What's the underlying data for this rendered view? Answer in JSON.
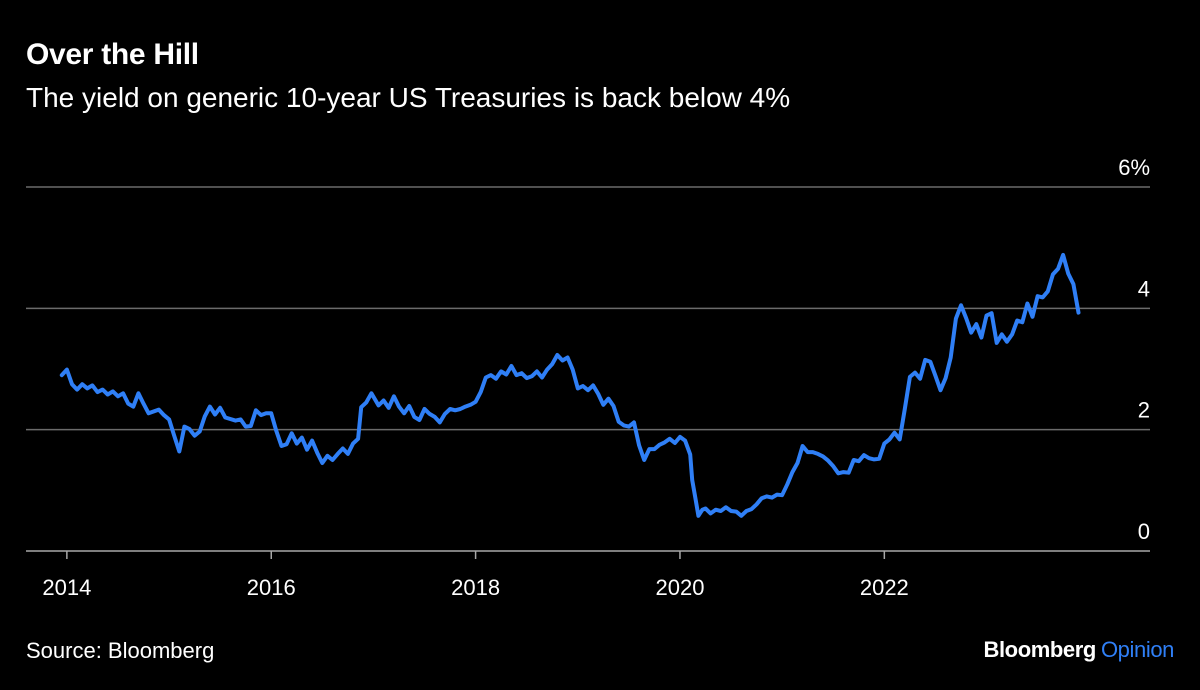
{
  "header": {
    "title": "Over the Hill",
    "subtitle": "The yield on generic 10-year US Treasuries is back below 4%"
  },
  "footer": {
    "source": "Source: Bloomberg",
    "brand_main": "Bloomberg",
    "brand_sub": "Opinion"
  },
  "colors": {
    "background": "#000000",
    "line": "#2f7ff6",
    "grid": "#6b6b6b",
    "text": "#ffffff"
  },
  "chart_data": {
    "type": "line",
    "title": "Over the Hill",
    "subtitle": "The yield on generic 10-year US Treasuries is back below 4%",
    "xlabel": "",
    "ylabel": "",
    "x_ticks": [
      "2014",
      "2016",
      "2018",
      "2020",
      "2022"
    ],
    "y_ticks": [
      "0",
      "2",
      "4",
      "6%"
    ],
    "ylim": [
      0,
      6
    ],
    "xlim": [
      2013.6,
      2024.6
    ],
    "grid": "horizontal",
    "y_axis_side": "right",
    "legend": "none",
    "series": [
      {
        "values": [
          [
            2013.95,
            2.9
          ],
          [
            2014.0,
            2.99
          ],
          [
            2014.05,
            2.75
          ],
          [
            2014.1,
            2.66
          ],
          [
            2014.15,
            2.75
          ],
          [
            2014.2,
            2.68
          ],
          [
            2014.25,
            2.73
          ],
          [
            2014.3,
            2.62
          ],
          [
            2014.35,
            2.66
          ],
          [
            2014.4,
            2.58
          ],
          [
            2014.45,
            2.63
          ],
          [
            2014.5,
            2.55
          ],
          [
            2014.55,
            2.6
          ],
          [
            2014.6,
            2.43
          ],
          [
            2014.65,
            2.38
          ],
          [
            2014.7,
            2.6
          ],
          [
            2014.75,
            2.43
          ],
          [
            2014.8,
            2.27
          ],
          [
            2014.9,
            2.33
          ],
          [
            2014.95,
            2.24
          ],
          [
            2015.0,
            2.17
          ],
          [
            2015.05,
            1.9
          ],
          [
            2015.1,
            1.64
          ],
          [
            2015.15,
            2.05
          ],
          [
            2015.2,
            2.01
          ],
          [
            2015.25,
            1.9
          ],
          [
            2015.3,
            1.97
          ],
          [
            2015.35,
            2.22
          ],
          [
            2015.4,
            2.38
          ],
          [
            2015.45,
            2.25
          ],
          [
            2015.5,
            2.36
          ],
          [
            2015.55,
            2.2
          ],
          [
            2015.65,
            2.15
          ],
          [
            2015.7,
            2.17
          ],
          [
            2015.75,
            2.05
          ],
          [
            2015.8,
            2.06
          ],
          [
            2015.85,
            2.32
          ],
          [
            2015.9,
            2.24
          ],
          [
            2015.95,
            2.27
          ],
          [
            2016.0,
            2.27
          ],
          [
            2016.05,
            1.98
          ],
          [
            2016.1,
            1.73
          ],
          [
            2016.15,
            1.76
          ],
          [
            2016.2,
            1.94
          ],
          [
            2016.25,
            1.77
          ],
          [
            2016.3,
            1.87
          ],
          [
            2016.35,
            1.67
          ],
          [
            2016.4,
            1.82
          ],
          [
            2016.45,
            1.62
          ],
          [
            2016.5,
            1.45
          ],
          [
            2016.55,
            1.57
          ],
          [
            2016.6,
            1.5
          ],
          [
            2016.65,
            1.6
          ],
          [
            2016.7,
            1.69
          ],
          [
            2016.75,
            1.6
          ],
          [
            2016.8,
            1.77
          ],
          [
            2016.85,
            1.85
          ],
          [
            2016.88,
            2.37
          ],
          [
            2016.93,
            2.45
          ],
          [
            2016.98,
            2.6
          ],
          [
            2017.05,
            2.4
          ],
          [
            2017.1,
            2.48
          ],
          [
            2017.15,
            2.36
          ],
          [
            2017.2,
            2.55
          ],
          [
            2017.25,
            2.38
          ],
          [
            2017.3,
            2.27
          ],
          [
            2017.35,
            2.39
          ],
          [
            2017.4,
            2.21
          ],
          [
            2017.45,
            2.16
          ],
          [
            2017.5,
            2.34
          ],
          [
            2017.55,
            2.26
          ],
          [
            2017.6,
            2.21
          ],
          [
            2017.65,
            2.12
          ],
          [
            2017.7,
            2.26
          ],
          [
            2017.75,
            2.34
          ],
          [
            2017.8,
            2.32
          ],
          [
            2017.85,
            2.34
          ],
          [
            2017.9,
            2.38
          ],
          [
            2017.95,
            2.41
          ],
          [
            2018.0,
            2.46
          ],
          [
            2018.05,
            2.62
          ],
          [
            2018.1,
            2.86
          ],
          [
            2018.15,
            2.9
          ],
          [
            2018.2,
            2.84
          ],
          [
            2018.25,
            2.96
          ],
          [
            2018.3,
            2.91
          ],
          [
            2018.35,
            3.05
          ],
          [
            2018.4,
            2.9
          ],
          [
            2018.45,
            2.93
          ],
          [
            2018.5,
            2.85
          ],
          [
            2018.55,
            2.88
          ],
          [
            2018.6,
            2.96
          ],
          [
            2018.65,
            2.86
          ],
          [
            2018.7,
            2.99
          ],
          [
            2018.75,
            3.08
          ],
          [
            2018.8,
            3.23
          ],
          [
            2018.85,
            3.14
          ],
          [
            2018.9,
            3.19
          ],
          [
            2018.95,
            2.99
          ],
          [
            2019.0,
            2.68
          ],
          [
            2019.05,
            2.72
          ],
          [
            2019.1,
            2.65
          ],
          [
            2019.15,
            2.73
          ],
          [
            2019.2,
            2.59
          ],
          [
            2019.25,
            2.41
          ],
          [
            2019.3,
            2.51
          ],
          [
            2019.35,
            2.39
          ],
          [
            2019.4,
            2.13
          ],
          [
            2019.45,
            2.07
          ],
          [
            2019.5,
            2.05
          ],
          [
            2019.55,
            2.12
          ],
          [
            2019.6,
            1.74
          ],
          [
            2019.65,
            1.5
          ],
          [
            2019.7,
            1.68
          ],
          [
            2019.75,
            1.68
          ],
          [
            2019.8,
            1.75
          ],
          [
            2019.85,
            1.79
          ],
          [
            2019.9,
            1.85
          ],
          [
            2019.95,
            1.78
          ],
          [
            2020.0,
            1.88
          ],
          [
            2020.05,
            1.82
          ],
          [
            2020.1,
            1.59
          ],
          [
            2020.12,
            1.17
          ],
          [
            2020.15,
            0.88
          ],
          [
            2020.18,
            0.58
          ],
          [
            2020.22,
            0.68
          ],
          [
            2020.25,
            0.7
          ],
          [
            2020.3,
            0.62
          ],
          [
            2020.35,
            0.68
          ],
          [
            2020.4,
            0.66
          ],
          [
            2020.45,
            0.72
          ],
          [
            2020.5,
            0.66
          ],
          [
            2020.55,
            0.65
          ],
          [
            2020.6,
            0.58
          ],
          [
            2020.65,
            0.66
          ],
          [
            2020.7,
            0.69
          ],
          [
            2020.75,
            0.77
          ],
          [
            2020.8,
            0.87
          ],
          [
            2020.85,
            0.9
          ],
          [
            2020.9,
            0.88
          ],
          [
            2020.95,
            0.93
          ],
          [
            2021.0,
            0.92
          ],
          [
            2021.05,
            1.1
          ],
          [
            2021.1,
            1.3
          ],
          [
            2021.15,
            1.45
          ],
          [
            2021.2,
            1.73
          ],
          [
            2021.25,
            1.63
          ],
          [
            2021.3,
            1.63
          ],
          [
            2021.35,
            1.6
          ],
          [
            2021.4,
            1.56
          ],
          [
            2021.45,
            1.49
          ],
          [
            2021.5,
            1.4
          ],
          [
            2021.55,
            1.28
          ],
          [
            2021.6,
            1.3
          ],
          [
            2021.65,
            1.29
          ],
          [
            2021.7,
            1.5
          ],
          [
            2021.75,
            1.48
          ],
          [
            2021.8,
            1.58
          ],
          [
            2021.85,
            1.53
          ],
          [
            2021.9,
            1.51
          ],
          [
            2021.95,
            1.52
          ],
          [
            2022.0,
            1.77
          ],
          [
            2022.05,
            1.84
          ],
          [
            2022.1,
            1.95
          ],
          [
            2022.15,
            1.84
          ],
          [
            2022.2,
            2.34
          ],
          [
            2022.25,
            2.87
          ],
          [
            2022.3,
            2.94
          ],
          [
            2022.35,
            2.84
          ],
          [
            2022.4,
            3.15
          ],
          [
            2022.45,
            3.12
          ],
          [
            2022.5,
            2.89
          ],
          [
            2022.55,
            2.65
          ],
          [
            2022.6,
            2.85
          ],
          [
            2022.65,
            3.19
          ],
          [
            2022.7,
            3.83
          ],
          [
            2022.75,
            4.05
          ],
          [
            2022.8,
            3.84
          ],
          [
            2022.85,
            3.6
          ],
          [
            2022.9,
            3.74
          ],
          [
            2022.95,
            3.52
          ],
          [
            2023.0,
            3.88
          ],
          [
            2023.05,
            3.92
          ],
          [
            2023.1,
            3.43
          ],
          [
            2023.15,
            3.57
          ],
          [
            2023.2,
            3.45
          ],
          [
            2023.25,
            3.57
          ],
          [
            2023.3,
            3.8
          ],
          [
            2023.35,
            3.77
          ],
          [
            2023.4,
            4.08
          ],
          [
            2023.45,
            3.86
          ],
          [
            2023.5,
            4.2
          ],
          [
            2023.55,
            4.18
          ],
          [
            2023.6,
            4.28
          ],
          [
            2023.65,
            4.56
          ],
          [
            2023.7,
            4.65
          ],
          [
            2023.75,
            4.88
          ],
          [
            2023.8,
            4.57
          ],
          [
            2023.85,
            4.4
          ],
          [
            2023.9,
            3.93
          ]
        ]
      }
    ]
  }
}
